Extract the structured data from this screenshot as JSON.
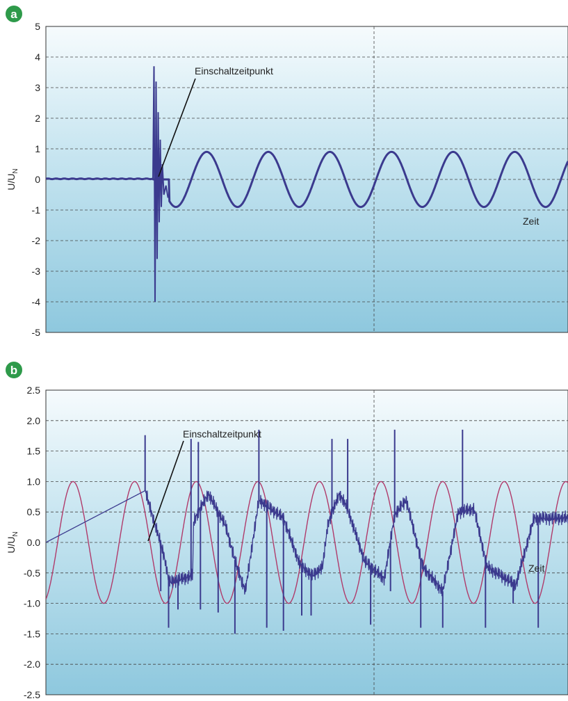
{
  "chart_data": [
    {
      "type": "line",
      "panel_label": "a",
      "ylabel": "U/U",
      "ylabel_sub": "N",
      "xlabel": "Zeit",
      "annotation": "Einschaltzeitpunkt",
      "ylim": [
        -5,
        5
      ],
      "yticks": [
        5,
        4,
        3,
        2,
        1,
        0,
        -1,
        -2,
        -3,
        -4,
        -5
      ],
      "yticks_display": [
        "5",
        "4",
        "3",
        "2",
        "1",
        "0",
        "-1",
        "-2",
        "-3",
        "-4",
        "-5"
      ],
      "grid": true,
      "switch_on": 0.205,
      "pre_value": 0.02,
      "sine": {
        "amplitude": 0.9,
        "period": 0.118,
        "first_max": 0.308
      },
      "transient_spikes": [
        [
          0.205,
          0.0
        ],
        [
          0.207,
          3.7
        ],
        [
          0.209,
          -4.0
        ],
        [
          0.211,
          3.2
        ],
        [
          0.213,
          -2.6
        ],
        [
          0.215,
          2.2
        ],
        [
          0.217,
          -1.4
        ],
        [
          0.219,
          1.3
        ],
        [
          0.221,
          -0.9
        ],
        [
          0.223,
          0.5
        ],
        [
          0.226,
          -0.5
        ],
        [
          0.23,
          -0.2
        ],
        [
          0.234,
          -0.6
        ]
      ]
    },
    {
      "type": "line",
      "panel_label": "b",
      "ylabel": "U/U",
      "ylabel_sub": "N",
      "xlabel": "Zeit",
      "annotation": "Einschaltzeitpunkt",
      "ylim": [
        -2.5,
        2.5
      ],
      "yticks": [
        2.5,
        2.0,
        1.5,
        1.0,
        0.5,
        0.0,
        -0.5,
        -1.0,
        -1.5,
        -2.0,
        -2.5
      ],
      "yticks_display": [
        "2.5",
        "2.0",
        "1.5",
        "1.0",
        "0.5",
        "0.0",
        "-0.5",
        "-1.0",
        "-1.5",
        "-2.0",
        "-2.5"
      ],
      "grid": true,
      "switch_on": 0.19,
      "pre_value": 0.0,
      "series": [
        {
          "kind": "reference-sine",
          "color": "#b03a6a",
          "amplitude": 1.0,
          "period": 0.118,
          "first_max": 0.052
        },
        {
          "kind": "measured",
          "color": "#3b3a8e",
          "steps": [
            [
              0.0,
              0.0
            ],
            [
              0.19,
              0.85
            ],
            [
              0.226,
              -0.2
            ],
            [
              0.236,
              -0.65
            ],
            [
              0.281,
              -0.55
            ],
            [
              0.283,
              0.35
            ],
            [
              0.311,
              0.8
            ],
            [
              0.344,
              0.28
            ],
            [
              0.364,
              -0.35
            ],
            [
              0.382,
              -0.8
            ],
            [
              0.408,
              0.7
            ],
            [
              0.455,
              0.4
            ],
            [
              0.486,
              -0.35
            ],
            [
              0.51,
              -0.55
            ],
            [
              0.53,
              -0.4
            ],
            [
              0.54,
              0.3
            ],
            [
              0.562,
              0.8
            ],
            [
              0.578,
              0.55
            ],
            [
              0.61,
              -0.3
            ],
            [
              0.648,
              -0.6
            ],
            [
              0.668,
              0.45
            ],
            [
              0.69,
              0.7
            ],
            [
              0.722,
              -0.4
            ],
            [
              0.76,
              -0.8
            ],
            [
              0.79,
              0.5
            ],
            [
              0.82,
              0.55
            ],
            [
              0.845,
              -0.4
            ],
            [
              0.9,
              -0.7
            ],
            [
              0.935,
              0.4
            ],
            [
              1.0,
              0.4
            ]
          ],
          "spikes": [
            [
              0.19,
              1.76
            ],
            [
              0.22,
              -0.8
            ],
            [
              0.235,
              -1.4
            ],
            [
              0.253,
              -1.1
            ],
            [
              0.278,
              1.7
            ],
            [
              0.292,
              1.65
            ],
            [
              0.296,
              -1.1
            ],
            [
              0.33,
              -1.15
            ],
            [
              0.362,
              -1.5
            ],
            [
              0.408,
              1.85
            ],
            [
              0.423,
              -1.4
            ],
            [
              0.455,
              -1.45
            ],
            [
              0.49,
              -1.2
            ],
            [
              0.508,
              -1.2
            ],
            [
              0.548,
              1.7
            ],
            [
              0.578,
              1.7
            ],
            [
              0.622,
              -1.35
            ],
            [
              0.66,
              -0.8
            ],
            [
              0.668,
              1.85
            ],
            [
              0.718,
              -1.4
            ],
            [
              0.76,
              -1.4
            ],
            [
              0.798,
              1.85
            ],
            [
              0.842,
              -1.4
            ],
            [
              0.895,
              -1.0
            ],
            [
              0.943,
              -1.4
            ]
          ]
        }
      ]
    }
  ]
}
